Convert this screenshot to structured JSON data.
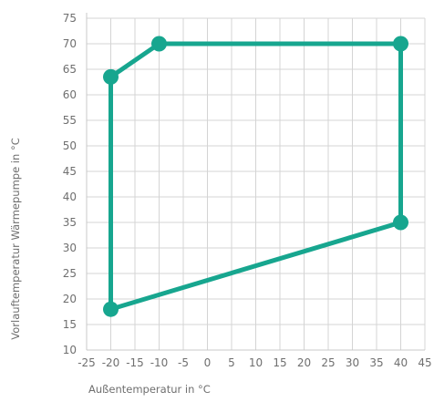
{
  "chart_data": {
    "type": "line",
    "xlabel": "Außentemperatur in °C",
    "ylabel": "Vorlauftemperatur Wärmepumpe in °C",
    "xlim": [
      -25,
      45
    ],
    "ylim": [
      10,
      75
    ],
    "x_ticks": [
      -25,
      -20,
      -15,
      -10,
      -5,
      0,
      5,
      10,
      15,
      20,
      25,
      30,
      35,
      40,
      45
    ],
    "y_ticks": [
      10,
      15,
      20,
      25,
      30,
      35,
      40,
      45,
      50,
      55,
      60,
      65,
      70,
      75
    ],
    "grid": true,
    "closed": true,
    "color": "#17a68f",
    "series": [
      {
        "points": [
          {
            "x": -20,
            "y": 63.5
          },
          {
            "x": -10,
            "y": 70
          },
          {
            "x": 40,
            "y": 70
          },
          {
            "x": 40,
            "y": 35
          },
          {
            "x": -20,
            "y": 18
          }
        ]
      }
    ]
  }
}
